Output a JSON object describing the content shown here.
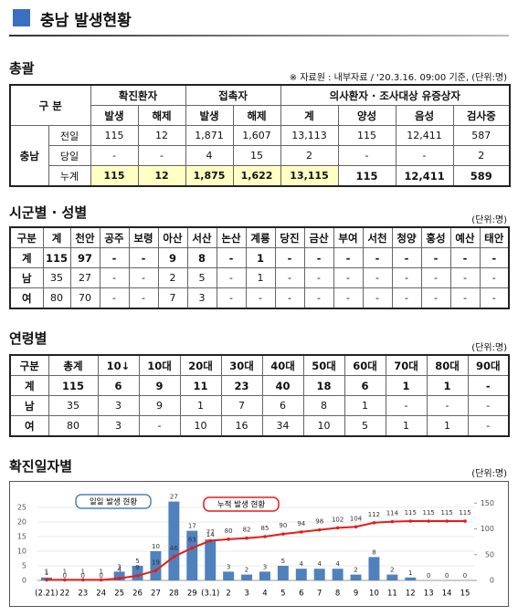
{
  "header": {
    "title": "충남 발생현황"
  },
  "summary": {
    "title": "총괄",
    "source": "※ 자료원 : 내부자료 / '20.3.16. 09:00 기준,",
    "unit": "(단위:명)",
    "table": {
      "corner": "구 분",
      "region": "충남",
      "groups": [
        "확진환자",
        "접촉자",
        "의사환자 · 조사대상 유증상자"
      ],
      "subheaders": [
        "발생",
        "해제",
        "발생",
        "해제",
        "계",
        "양성",
        "음성",
        "검사중"
      ],
      "rows": [
        {
          "label": "전일",
          "cells": [
            "115",
            "12",
            "1,871",
            "1,607",
            "13,113",
            "115",
            "12,411",
            "587"
          ]
        },
        {
          "label": "당일",
          "cells": [
            "-",
            "-",
            "4",
            "15",
            "2",
            "-",
            "-",
            "2"
          ]
        },
        {
          "label": "누계",
          "cells": [
            "115",
            "12",
            "1,875",
            "1,622",
            "13,115",
            "115",
            "12,411",
            "589"
          ]
        }
      ]
    }
  },
  "region": {
    "title": "시군별 · 성별",
    "unit": "(단위:명)",
    "table": {
      "header": [
        "구분",
        "계",
        "천안",
        "공주",
        "보령",
        "아산",
        "서산",
        "논산",
        "계룡",
        "당진",
        "금산",
        "부여",
        "서천",
        "청양",
        "홍성",
        "예산",
        "태안"
      ],
      "rows": [
        [
          "계",
          "115",
          "97",
          "-",
          "-",
          "9",
          "8",
          "-",
          "1",
          "-",
          "-",
          "-",
          "-",
          "-",
          "-",
          "-",
          "-"
        ],
        [
          "남",
          "35",
          "27",
          "-",
          "-",
          "2",
          "5",
          "-",
          "1",
          "-",
          "-",
          "-",
          "-",
          "-",
          "-",
          "-",
          "-"
        ],
        [
          "여",
          "80",
          "70",
          "-",
          "-",
          "7",
          "3",
          "-",
          "-",
          "-",
          "-",
          "-",
          "-",
          "-",
          "-",
          "-",
          "-"
        ]
      ]
    }
  },
  "age": {
    "title": "연령별",
    "unit": "(단위:명)",
    "table": {
      "header": [
        "구분",
        "총계",
        "10↓",
        "10대",
        "20대",
        "30대",
        "40대",
        "50대",
        "60대",
        "70대",
        "80대",
        "90대"
      ],
      "rows": [
        [
          "계",
          "115",
          "6",
          "9",
          "11",
          "23",
          "40",
          "18",
          "6",
          "1",
          "1",
          "-"
        ],
        [
          "남",
          "35",
          "3",
          "9",
          "1",
          "7",
          "6",
          "8",
          "1",
          "-",
          "-",
          "-"
        ],
        [
          "여",
          "80",
          "3",
          "-",
          "10",
          "16",
          "34",
          "10",
          "5",
          "1",
          "1",
          "-"
        ]
      ]
    }
  },
  "chart_data": {
    "type": "bar",
    "title": "확진일자별",
    "unit": "(단위:명)",
    "categories": [
      "(2.21)",
      "22",
      "23",
      "24",
      "25",
      "26",
      "27",
      "28",
      "29",
      "(3.1)",
      "2",
      "3",
      "4",
      "5",
      "6",
      "7",
      "8",
      "9",
      "10",
      "11",
      "12",
      "13",
      "14",
      "15"
    ],
    "series": [
      {
        "name": "일일 발생 현황",
        "type": "bar",
        "color": "#4f81bd",
        "values": [
          1,
          0,
          0,
          0,
          3,
          5,
          10,
          27,
          17,
          14,
          3,
          2,
          3,
          5,
          4,
          4,
          4,
          2,
          8,
          2,
          1,
          0,
          0,
          0
        ]
      },
      {
        "name": "누적 발생 현황",
        "type": "line",
        "color": "#e51c1c",
        "axis": "y2",
        "values": [
          1,
          1,
          1,
          1,
          4,
          9,
          19,
          46,
          63,
          77,
          80,
          82,
          85,
          90,
          94,
          98,
          102,
          104,
          112,
          114,
          115,
          115,
          115,
          115
        ]
      }
    ],
    "ylim": [
      0,
      30
    ],
    "yticks": [
      0,
      5,
      10,
      15,
      20,
      25
    ],
    "y2lim": [
      0,
      170
    ],
    "y2ticks": [
      0,
      50,
      100,
      150
    ],
    "grid": true
  }
}
